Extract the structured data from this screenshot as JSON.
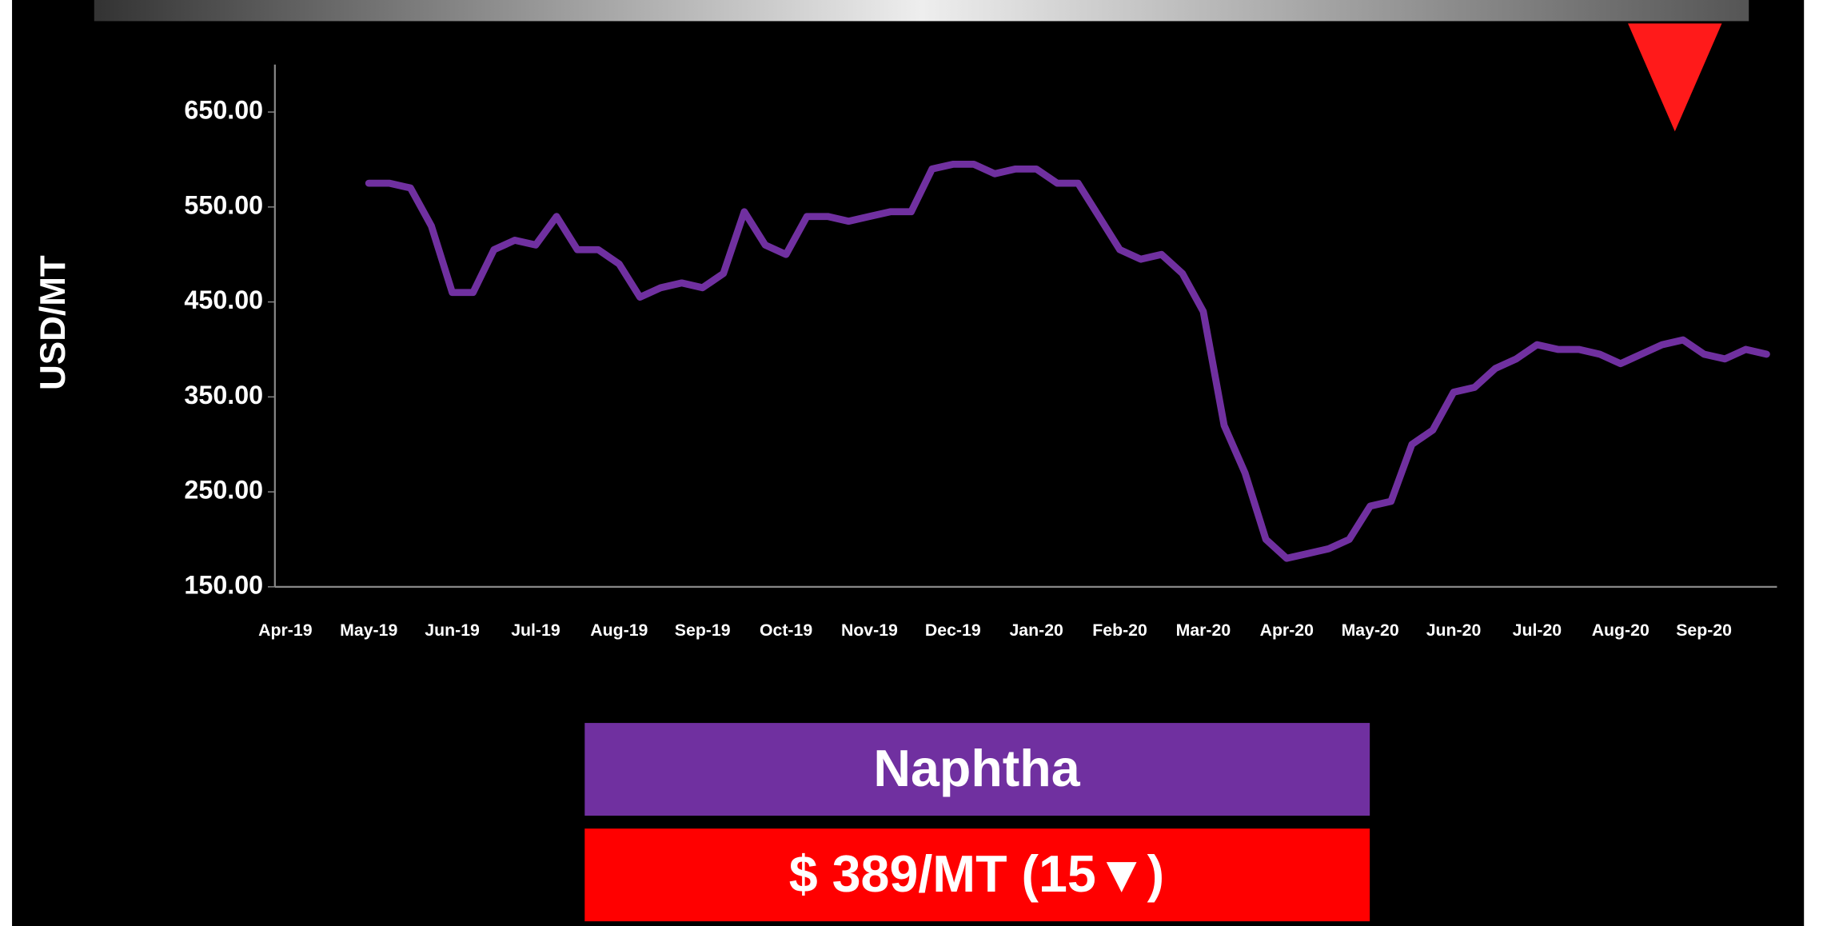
{
  "chart_data": {
    "type": "line",
    "y_label": "USD/MT",
    "categories": [
      "Apr-19",
      null,
      null,
      null,
      "May-19",
      null,
      null,
      null,
      "Jun-19",
      null,
      null,
      null,
      "Jul-19",
      null,
      null,
      null,
      "Aug-19",
      null,
      null,
      null,
      "Sep-19",
      null,
      null,
      null,
      "Oct-19",
      null,
      null,
      null,
      "Nov-19",
      null,
      null,
      null,
      "Dec-19",
      null,
      null,
      null,
      "Jan-20",
      null,
      null,
      null,
      "Feb-20",
      null,
      null,
      null,
      "Mar-20",
      null,
      null,
      null,
      "Apr-20",
      null,
      null,
      null,
      "May-20",
      null,
      null,
      null,
      "Jun-20",
      null,
      null,
      null,
      "Jul-20",
      null,
      null,
      null,
      "Aug-20",
      null,
      null,
      null,
      "Sep-20",
      null,
      null,
      null
    ],
    "series": [
      {
        "name": "Naphtha",
        "color": "#7030a0",
        "values": [
          null,
          null,
          null,
          null,
          575,
          575,
          570,
          530,
          460,
          460,
          505,
          515,
          510,
          540,
          505,
          505,
          490,
          455,
          465,
          470,
          465,
          480,
          545,
          510,
          500,
          540,
          540,
          535,
          540,
          545,
          545,
          590,
          595,
          595,
          585,
          590,
          590,
          575,
          575,
          540,
          505,
          495,
          500,
          480,
          440,
          320,
          270,
          200,
          180,
          185,
          190,
          200,
          235,
          240,
          300,
          315,
          355,
          360,
          380,
          390,
          405,
          400,
          400,
          395,
          385,
          395,
          405,
          410,
          395,
          390,
          400,
          395
        ]
      }
    ],
    "ylim": [
      150,
      700
    ],
    "yticks": [
      {
        "value": 150,
        "label": "150.00"
      },
      {
        "value": 250,
        "label": "250.00"
      },
      {
        "value": 350,
        "label": "350.00"
      },
      {
        "value": 450,
        "label": "450.00"
      },
      {
        "value": 550,
        "label": "550.00"
      },
      {
        "value": 650,
        "label": "650.00"
      }
    ]
  },
  "banner": {
    "product": "Naphtha",
    "price": "$ 389/MT (15▼)"
  }
}
